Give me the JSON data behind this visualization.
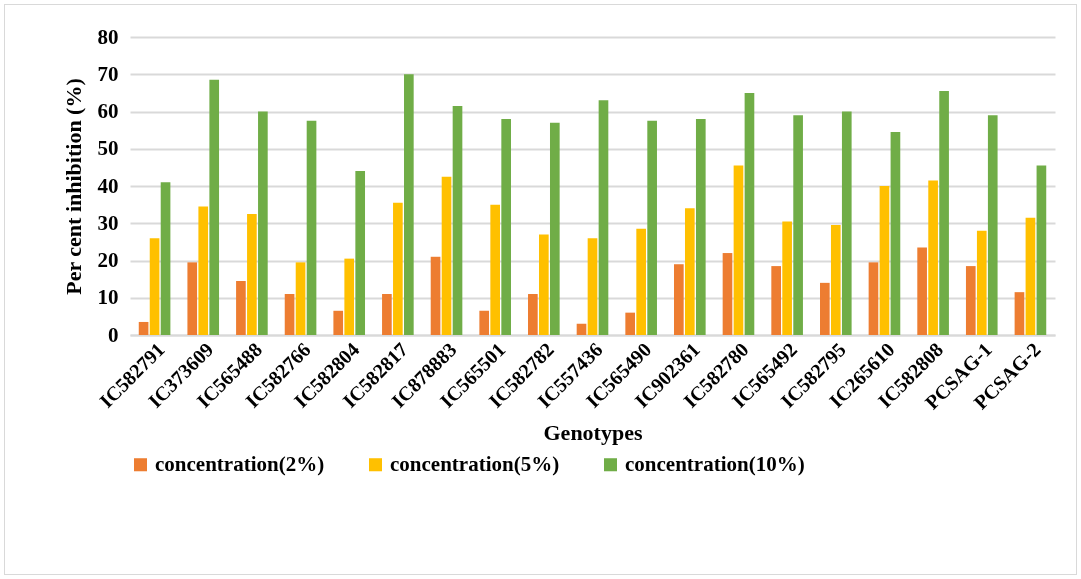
{
  "chart_data": {
    "type": "bar",
    "xlabel": "Genotypes",
    "ylabel": "Per cent inhibition (%)",
    "categories": [
      "IC582791",
      "IC373609",
      "IC565488",
      "IC582766",
      "IC582804",
      "IC582817",
      "IC878883",
      "IC565501",
      "IC582782",
      "IC557436",
      "IC565490",
      "IC902361",
      "IC582780",
      "IC565492",
      "IC582795",
      "IC265610",
      "IC582808",
      "PCSAG-1",
      "PCSAG-2"
    ],
    "series": [
      {
        "name": "concentration(2%)",
        "color": "#ed7d31",
        "values": [
          3.5,
          19.5,
          14.5,
          11,
          6.5,
          11,
          21,
          6.5,
          11,
          3,
          6,
          19,
          22,
          18.5,
          14,
          19.5,
          23.5,
          18.5,
          11.5
        ]
      },
      {
        "name": "concentration(5%)",
        "color": "#ffc000",
        "values": [
          26,
          34.5,
          32.5,
          19.5,
          20.5,
          35.5,
          42.5,
          35,
          27,
          26,
          28.5,
          34,
          45.5,
          30.5,
          29.5,
          40,
          41.5,
          28,
          31.5
        ]
      },
      {
        "name": "concentration(10%)",
        "color": "#70ad47",
        "values": [
          41,
          68.5,
          60,
          57.5,
          44,
          70,
          61.5,
          58,
          57,
          63,
          57.5,
          58,
          65,
          59,
          60,
          54.5,
          65.5,
          59,
          45.5
        ]
      }
    ],
    "ylim": [
      0,
      80
    ],
    "yticks": [
      0,
      10,
      20,
      30,
      40,
      50,
      60,
      70,
      80
    ],
    "grid": "y",
    "legend": "bottom"
  }
}
